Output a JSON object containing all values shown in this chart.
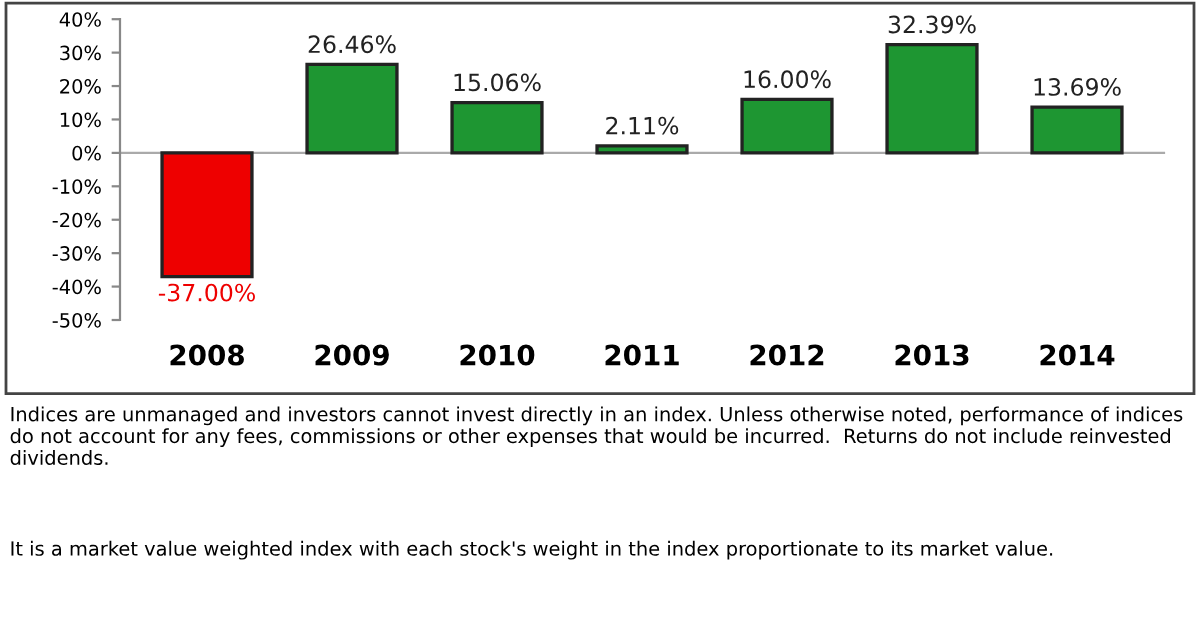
{
  "chart_data": {
    "type": "bar",
    "categories": [
      "2008",
      "2009",
      "2010",
      "2011",
      "2012",
      "2013",
      "2014"
    ],
    "values": [
      -37.0,
      26.46,
      15.06,
      2.11,
      16.0,
      32.39,
      13.69
    ],
    "colors": [
      "#ee0000",
      "#1e9632",
      "#1e9632",
      "#1e9632",
      "#1e9632",
      "#1e9632",
      "#1e9632"
    ],
    "value_labels": [
      "-37.00%",
      "26.46%",
      "15.06%",
      "2.11%",
      "16.00%",
      "32.39%",
      "13.69%"
    ],
    "ylim": [
      -50,
      40
    ],
    "yticks": [
      {
        "value": -50,
        "label": "-50%"
      },
      {
        "value": -40,
        "label": "-40%"
      },
      {
        "value": -30,
        "label": "-30%"
      },
      {
        "value": -20,
        "label": "-20%"
      },
      {
        "value": -10,
        "label": "-10%"
      },
      {
        "value": 0,
        "label": "0%"
      },
      {
        "value": 10,
        "label": "10%"
      },
      {
        "value": 20,
        "label": "20%"
      },
      {
        "value": 30,
        "label": "30%"
      },
      {
        "value": 40,
        "label": "40%"
      }
    ],
    "legend": false,
    "annotations": [
      "Indices are unmanaged and investors cannot invest directly in an index. Unless otherwise noted, performance of indices do not account for any fees, commissions or other expenses that would be incurred.  Returns do not include reinvested dividends.",
      "It is a market value weighted index with each stock's weight in the index proportionate to its market value."
    ]
  }
}
